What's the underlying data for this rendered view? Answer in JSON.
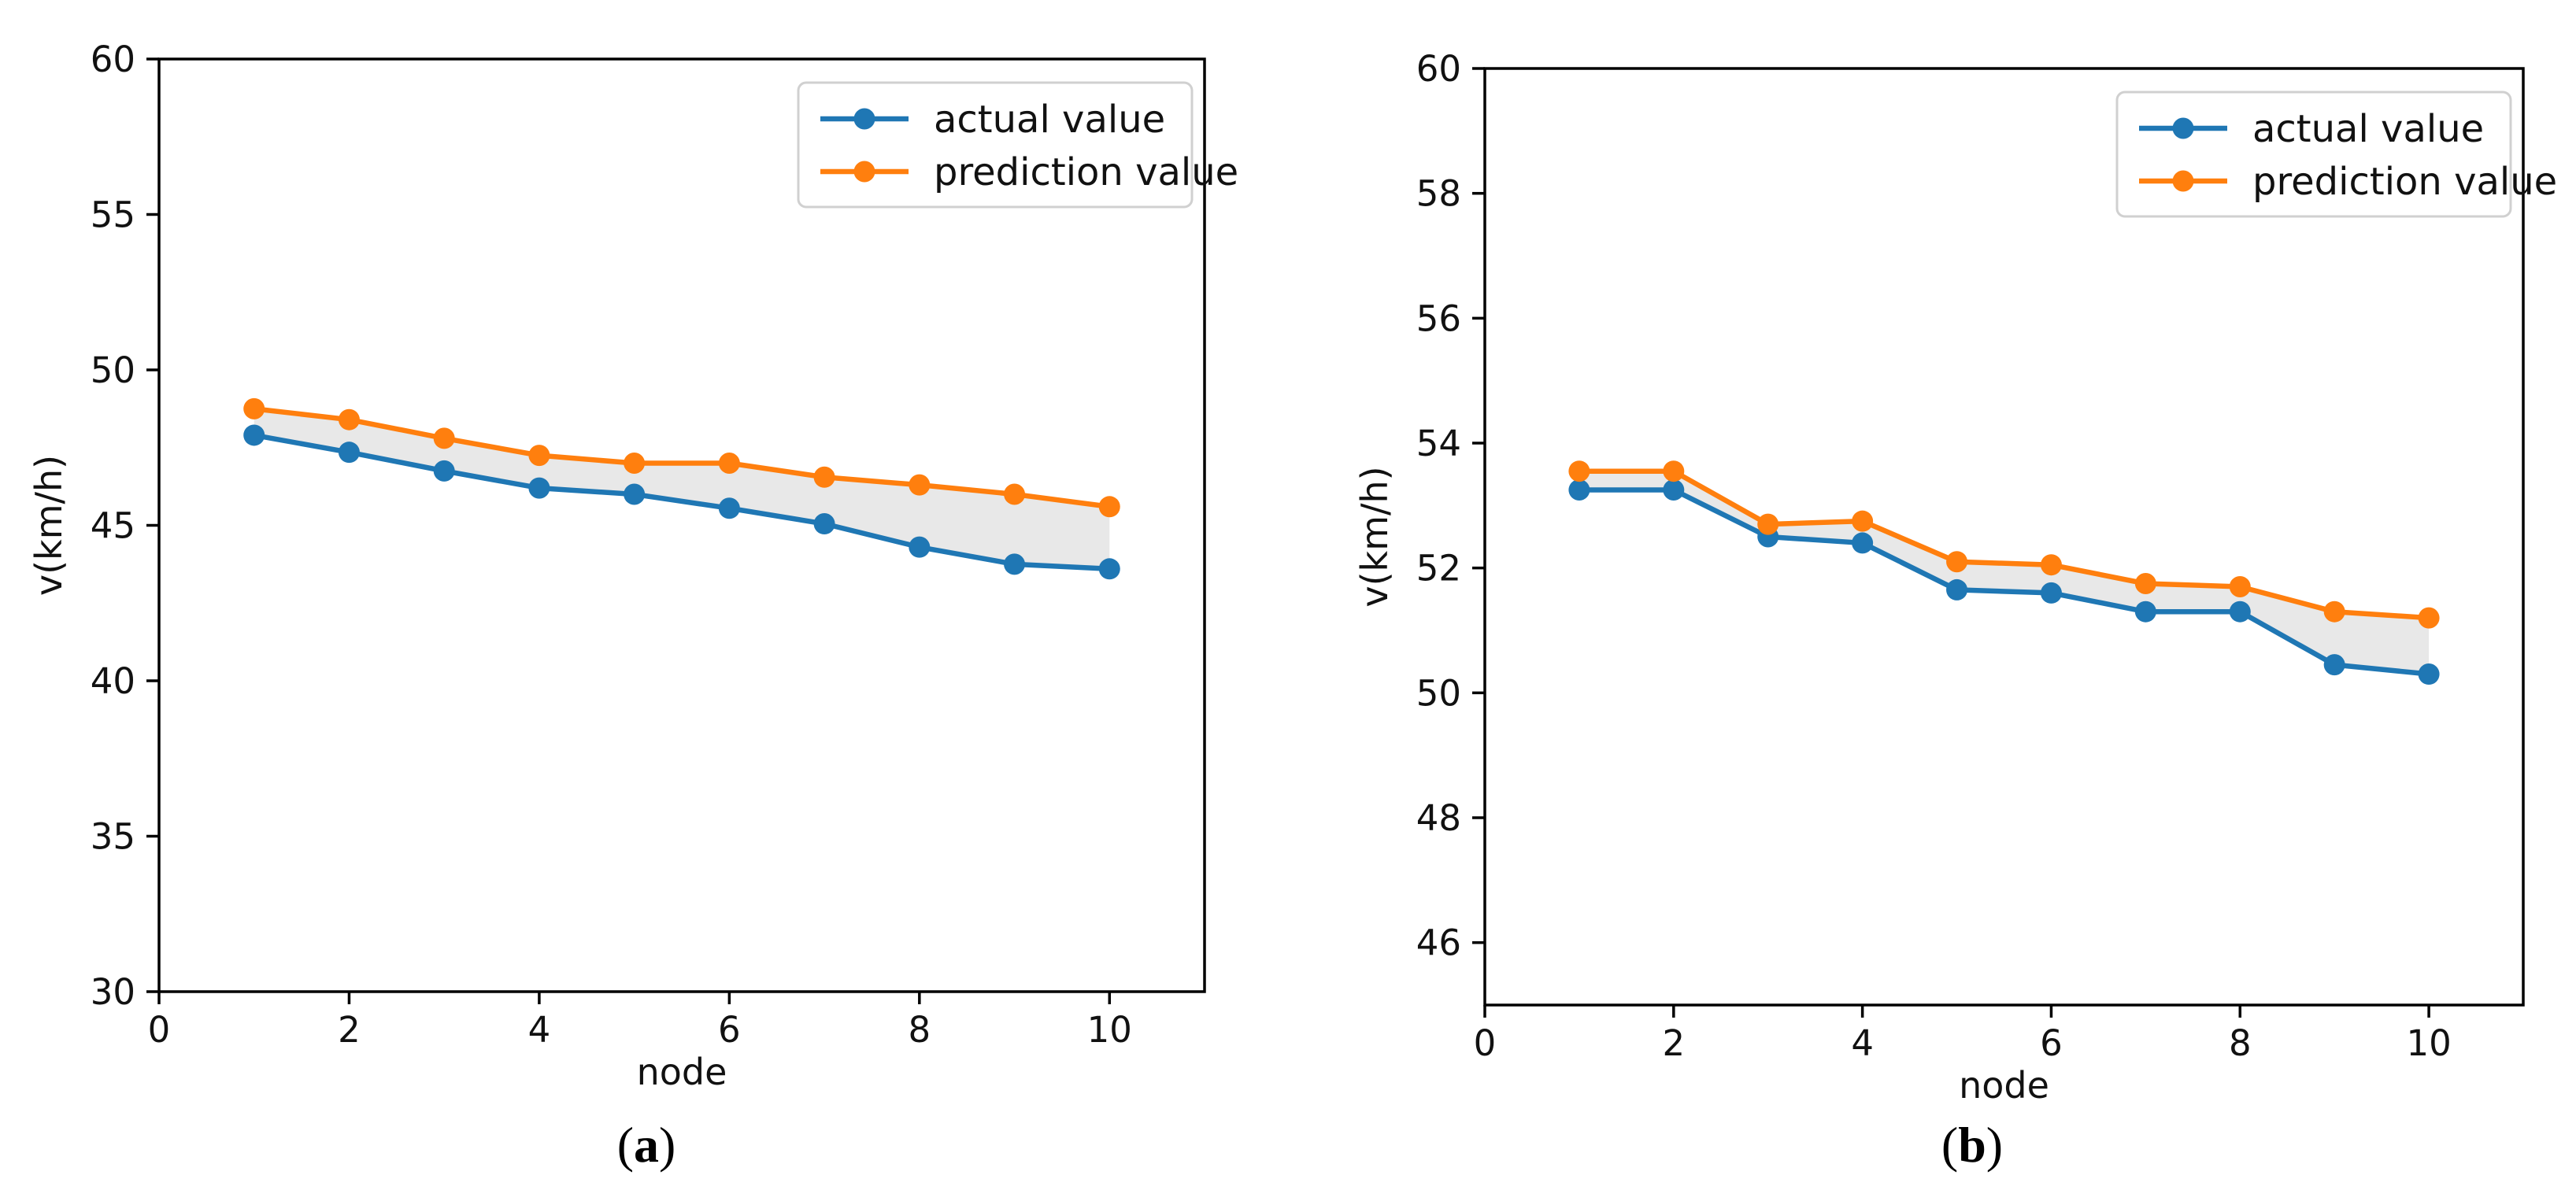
{
  "figure": {
    "background": "#ffffff",
    "text_color": "#111111",
    "axis_color": "#000000",
    "legend_border_color": "#d0d0d0",
    "legend_background": "#ffffff"
  },
  "chart_data": [
    {
      "id": "a",
      "type": "line",
      "caption": {
        "prefix": "(",
        "letter": "a",
        "suffix": ")"
      },
      "xlabel": "node",
      "ylabel": "v(km/h)",
      "xlim": [
        0,
        11
      ],
      "ylim": [
        30,
        60
      ],
      "xticks": [
        0,
        2,
        4,
        6,
        8,
        10
      ],
      "yticks": [
        30,
        35,
        40,
        45,
        50,
        55,
        60
      ],
      "grid": false,
      "x": [
        1,
        2,
        3,
        4,
        5,
        6,
        7,
        8,
        9,
        10
      ],
      "series": [
        {
          "name": "actual value",
          "color": "#1f77b4",
          "values": [
            47.9,
            47.35,
            46.75,
            46.2,
            46.0,
            45.55,
            45.05,
            44.3,
            43.75,
            43.6
          ]
        },
        {
          "name": "prediction value",
          "color": "#ff7f0e",
          "values": [
            48.75,
            48.4,
            47.8,
            47.25,
            47.0,
            47.0,
            46.55,
            46.3,
            46.0,
            45.6
          ]
        }
      ],
      "band_between_series": true,
      "band_color": "#e8e8e8",
      "legend": {
        "position": "upper-right",
        "entries": [
          "actual value",
          "prediction value"
        ]
      }
    },
    {
      "id": "b",
      "type": "line",
      "caption": {
        "prefix": "(",
        "letter": "b",
        "suffix": ")"
      },
      "xlabel": "node",
      "ylabel": "v(km/h)",
      "xlim": [
        0,
        11
      ],
      "ylim": [
        45,
        60
      ],
      "xticks": [
        0,
        2,
        4,
        6,
        8,
        10
      ],
      "yticks": [
        46,
        48,
        50,
        52,
        54,
        56,
        58,
        60
      ],
      "grid": false,
      "x": [
        1,
        2,
        3,
        4,
        5,
        6,
        7,
        8,
        9,
        10
      ],
      "series": [
        {
          "name": "actual value",
          "color": "#1f77b4",
          "values": [
            53.25,
            53.25,
            52.5,
            52.4,
            51.65,
            51.6,
            51.3,
            51.3,
            50.45,
            50.3
          ]
        },
        {
          "name": "prediction value",
          "color": "#ff7f0e",
          "values": [
            53.55,
            53.55,
            52.7,
            52.75,
            52.1,
            52.05,
            51.75,
            51.7,
            51.3,
            51.2
          ]
        }
      ],
      "band_between_series": true,
      "band_color": "#e8e8e8",
      "legend": {
        "position": "upper-right",
        "entries": [
          "actual value",
          "prediction value"
        ]
      }
    }
  ]
}
